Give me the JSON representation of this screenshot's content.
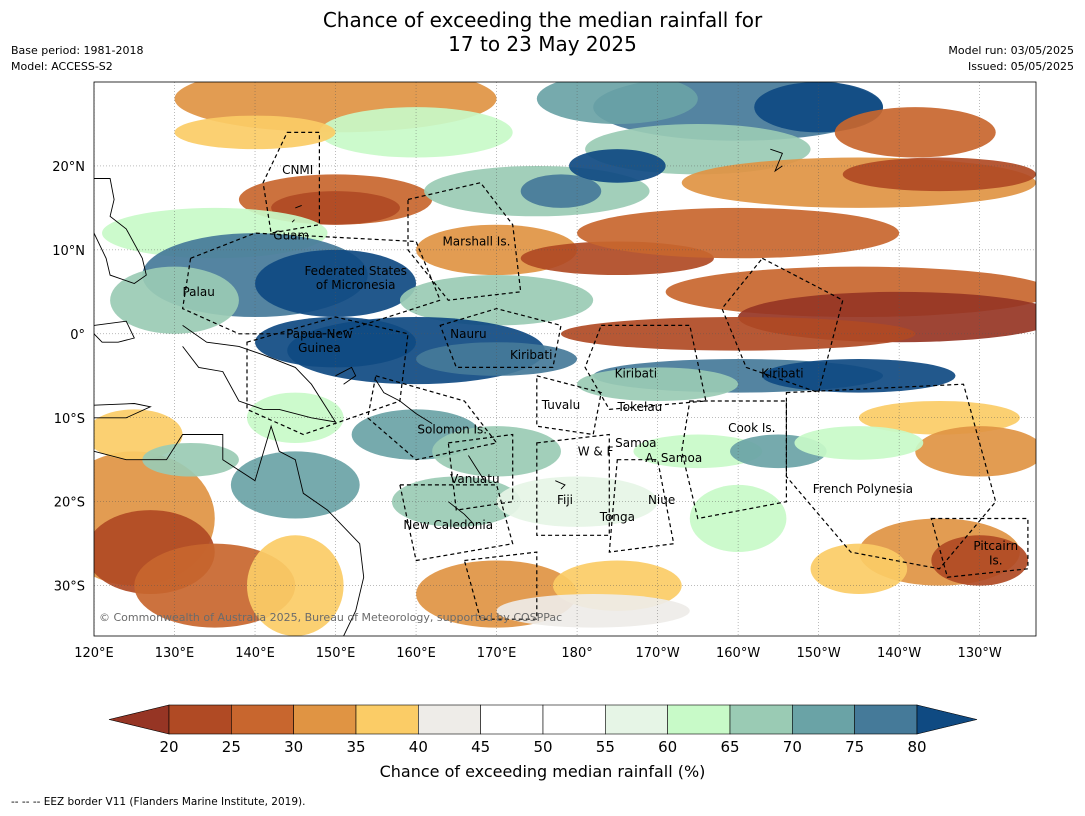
{
  "header": {
    "title_line1": "Chance of exceeding the median rainfall for",
    "title_line2": "17 to 23 May 2025",
    "base_period": "Base period: 1981-2018",
    "model": "Model: ACCESS-S2",
    "model_run": "Model run: 03/05/2025",
    "issued": "Issued: 05/05/2025"
  },
  "map": {
    "lon_range": [
      120,
      237
    ],
    "lat_range": [
      -36,
      30
    ],
    "lon_ticks": [
      {
        "lon": 120,
        "label": "120°E"
      },
      {
        "lon": 130,
        "label": "130°E"
      },
      {
        "lon": 140,
        "label": "140°E"
      },
      {
        "lon": 150,
        "label": "150°E"
      },
      {
        "lon": 160,
        "label": "160°E"
      },
      {
        "lon": 170,
        "label": "170°E"
      },
      {
        "lon": 180,
        "label": "180°"
      },
      {
        "lon": 190,
        "label": "170°W"
      },
      {
        "lon": 200,
        "label": "160°W"
      },
      {
        "lon": 210,
        "label": "150°W"
      },
      {
        "lon": 220,
        "label": "140°W"
      },
      {
        "lon": 230,
        "label": "130°W"
      }
    ],
    "lat_ticks": [
      {
        "lat": 20,
        "label": "20°N"
      },
      {
        "lat": 10,
        "label": "10°N"
      },
      {
        "lat": 0,
        "label": "0°"
      },
      {
        "lat": -10,
        "label": "10°S"
      },
      {
        "lat": -20,
        "label": "20°S"
      },
      {
        "lat": -30,
        "label": "30°S"
      }
    ],
    "labels": [
      {
        "text": "CNMI",
        "lon": 145.3,
        "lat": 19.5
      },
      {
        "text": "Guam",
        "lon": 144.5,
        "lat": 11.7
      },
      {
        "text": "Marshall Is.",
        "lon": 167.5,
        "lat": 11.0
      },
      {
        "text": "Federated States",
        "lon": 152.5,
        "lat": 7.5
      },
      {
        "text": "of Micronesia",
        "lon": 152.5,
        "lat": 5.8
      },
      {
        "text": "Palau",
        "lon": 133.0,
        "lat": 5.0
      },
      {
        "text": "Papua New",
        "lon": 148.0,
        "lat": 0.0
      },
      {
        "text": "Guinea",
        "lon": 148.0,
        "lat": -1.7
      },
      {
        "text": "Nauru",
        "lon": 166.5,
        "lat": 0.0
      },
      {
        "text": "Kiribati",
        "lon": 174.3,
        "lat": -2.5
      },
      {
        "text": "Kiribati",
        "lon": 187.3,
        "lat": -4.7
      },
      {
        "text": "Kiribati",
        "lon": 205.5,
        "lat": -4.7
      },
      {
        "text": "Tuvalu",
        "lon": 178.0,
        "lat": -8.5
      },
      {
        "text": "Tokelau",
        "lon": 187.8,
        "lat": -8.7
      },
      {
        "text": "Cook Is.",
        "lon": 201.7,
        "lat": -11.2
      },
      {
        "text": "Solomon Is.",
        "lon": 164.5,
        "lat": -11.4
      },
      {
        "text": "Samoa",
        "lon": 187.3,
        "lat": -13.0
      },
      {
        "text": "W & F",
        "lon": 182.3,
        "lat": -14.0
      },
      {
        "text": "A. Samoa",
        "lon": 192.0,
        "lat": -14.8
      },
      {
        "text": "Vanuatu",
        "lon": 167.3,
        "lat": -17.3
      },
      {
        "text": "French Polynesia",
        "lon": 215.5,
        "lat": -18.5
      },
      {
        "text": "Fiji",
        "lon": 178.5,
        "lat": -19.8
      },
      {
        "text": "Niue",
        "lon": 190.5,
        "lat": -19.8
      },
      {
        "text": "Tonga",
        "lon": 185.0,
        "lat": -21.8
      },
      {
        "text": "New Caledonia",
        "lon": 164.0,
        "lat": -22.8
      },
      {
        "text": "Pitcairn",
        "lon": 232.0,
        "lat": -25.3
      },
      {
        "text": "Is.",
        "lon": 232.0,
        "lat": -27.0
      }
    ],
    "credit": "© Commonwealth of Australia 2025, Bureau of Meteorology, supported by COSPPac"
  },
  "legend": {
    "title": "Chance of exceeding median rainfall (%)",
    "ticks": [
      "20",
      "25",
      "30",
      "35",
      "40",
      "45",
      "50",
      "55",
      "60",
      "65",
      "70",
      "75",
      "80"
    ],
    "colors": {
      "under_20": "#963524",
      "c20_25": "#b04a24",
      "c25_30": "#c8662e",
      "c30_35": "#e09443",
      "c35_40": "#fbcc66",
      "c40_45": "#eeece8",
      "c45_50": "#ffffff",
      "c50_55": "#ffffff",
      "c55_60": "#e6f5e6",
      "c60_65": "#c8fac8",
      "c65_70": "#9acbb4",
      "c70_75": "#6aa3a6",
      "c75_80": "#457a99",
      "over_80": "#0f4a82"
    }
  },
  "footer": {
    "eez_note": "--  --  -- EEZ border V11 (Flanders Marine Institute, 2019)."
  }
}
